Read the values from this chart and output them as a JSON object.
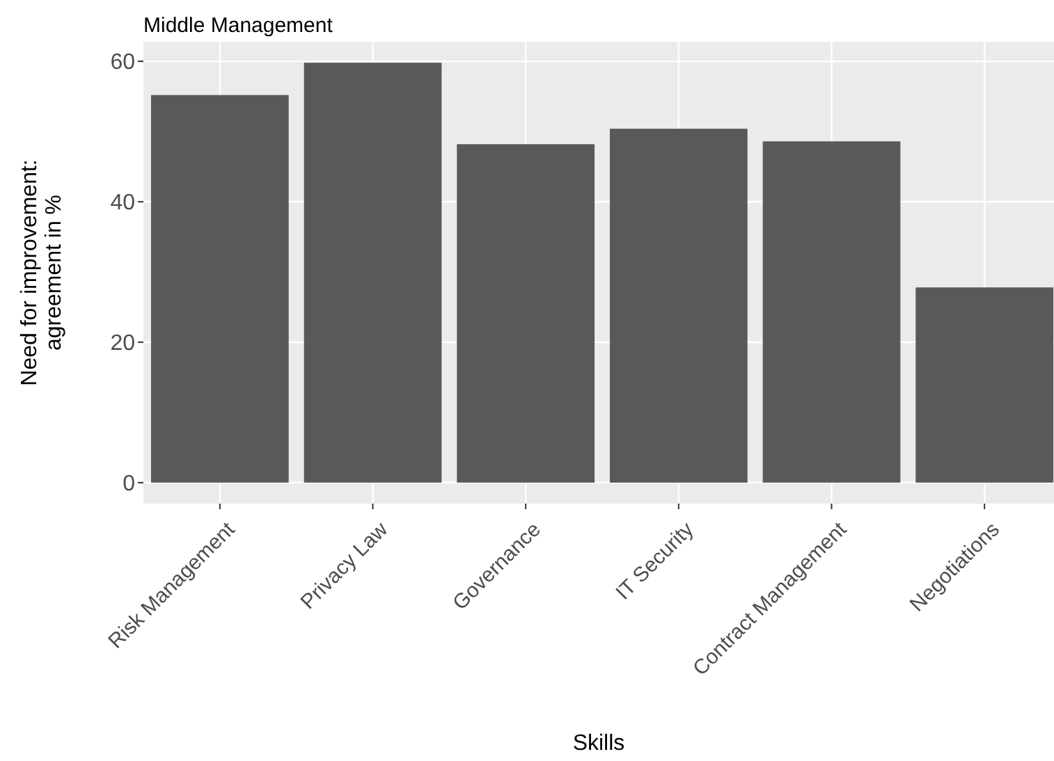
{
  "chart_data": {
    "type": "bar",
    "title": "Middle Management",
    "xlabel": "Skills",
    "ylabel": "Need for improvement:\nagreement in %",
    "categories": [
      "Risk Management",
      "Privacy Law",
      "Governance",
      "IT Security",
      "Contract Management",
      "Negotiations"
    ],
    "values": [
      55.2,
      59.8,
      48.2,
      50.4,
      48.6,
      27.8
    ],
    "color": "#595959",
    "ylim": [
      -2.99,
      62.79
    ],
    "yticks": [
      0,
      20,
      40,
      60
    ],
    "grid": true
  }
}
